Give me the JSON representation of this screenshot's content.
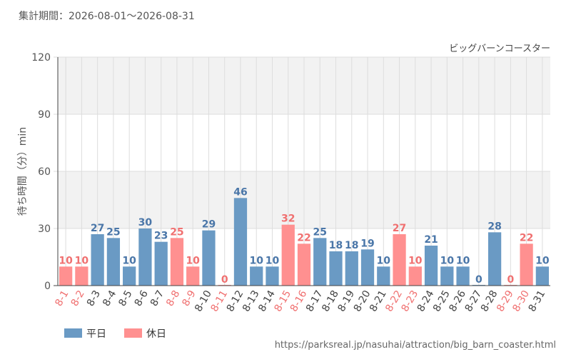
{
  "period_label": "集計期間：2026-08-01～2026-08-31",
  "source_url": "https://parksreal.jp/nasuhai/attraction/big_barn_coaster.html",
  "chart_data": {
    "type": "bar",
    "title": "ビッグバーンコースター",
    "ylabel": "待ち時間（分）min",
    "ylim": [
      0,
      120
    ],
    "yticks": [
      0,
      30,
      60,
      90,
      120
    ],
    "grid": true,
    "legend_position": "bottom-left",
    "legend": [
      {
        "name": "平日",
        "color": "#6a9ac4"
      },
      {
        "name": "休日",
        "color": "#ff9090"
      }
    ],
    "categories": [
      "8-1",
      "8-2",
      "8-3",
      "8-4",
      "8-5",
      "8-6",
      "8-7",
      "8-8",
      "8-9",
      "8-10",
      "8-11",
      "8-12",
      "8-13",
      "8-14",
      "8-15",
      "8-16",
      "8-17",
      "8-18",
      "8-19",
      "8-20",
      "8-21",
      "8-22",
      "8-23",
      "8-24",
      "8-25",
      "8-26",
      "8-27",
      "8-28",
      "8-29",
      "8-30",
      "8-31"
    ],
    "values": [
      10,
      10,
      27,
      25,
      10,
      30,
      23,
      25,
      10,
      29,
      0,
      46,
      10,
      10,
      32,
      22,
      25,
      18,
      18,
      19,
      10,
      27,
      10,
      21,
      10,
      10,
      0,
      28,
      0,
      22,
      10
    ],
    "day_type": [
      "休日",
      "休日",
      "平日",
      "平日",
      "平日",
      "平日",
      "平日",
      "休日",
      "休日",
      "平日",
      "休日",
      "平日",
      "平日",
      "平日",
      "休日",
      "休日",
      "平日",
      "平日",
      "平日",
      "平日",
      "平日",
      "休日",
      "休日",
      "平日",
      "平日",
      "平日",
      "平日",
      "平日",
      "休日",
      "休日",
      "平日"
    ],
    "colors": {
      "weekday": "#6a9ac4",
      "holiday": "#ff9090",
      "weekday_label": "#4a76a8",
      "holiday_label": "#f07070",
      "band": "#f2f2f2",
      "grid": "#dddddd",
      "axis": "#444444",
      "text": "#555555"
    }
  }
}
